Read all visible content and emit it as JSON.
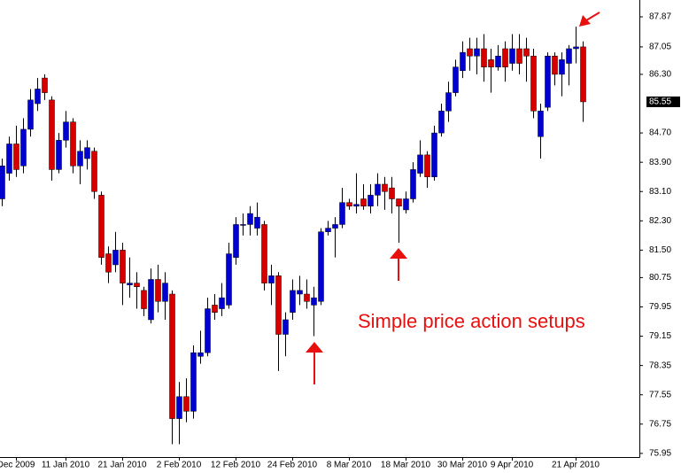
{
  "chart_data": {
    "type": "candlestick",
    "categories": [
      null,
      null,
      "Dec 2009",
      null,
      null,
      null,
      null,
      null,
      null,
      "11 Jan 2010",
      null,
      null,
      null,
      null,
      null,
      null,
      null,
      "21 Jan 2010",
      null,
      null,
      null,
      null,
      null,
      null,
      null,
      "2 Feb 2010",
      null,
      null,
      null,
      null,
      null,
      null,
      null,
      "12 Feb 2010",
      null,
      null,
      null,
      null,
      null,
      null,
      null,
      "24 Feb 2010",
      null,
      null,
      null,
      null,
      null,
      null,
      null,
      "8 Mar 2010",
      null,
      null,
      null,
      null,
      null,
      null,
      null,
      "18 Mar 2010",
      null,
      null,
      null,
      null,
      null,
      null,
      null,
      "30 Mar 2010",
      null,
      null,
      null,
      null,
      null,
      null,
      "9 Apr 2010",
      null,
      null,
      null,
      null,
      null,
      null,
      null,
      null,
      "21 Apr 2010",
      null
    ],
    "open": [
      82.9,
      83.6,
      84.4,
      83.8,
      84.8,
      85.5,
      86.2,
      85.6,
      83.7,
      84.5,
      85.0,
      83.8,
      84.0,
      84.2,
      83.0,
      81.4,
      81.1,
      81.5,
      80.55,
      80.6,
      80.4,
      79.6,
      80.7,
      80.1,
      80.3,
      76.9,
      77.5,
      77.1,
      78.6,
      78.7,
      80.0,
      79.9,
      80.0,
      81.3,
      82.2,
      82.2,
      82.1,
      82.2,
      80.6,
      80.8,
      79.2,
      79.8,
      80.3,
      80.3,
      80.0,
      80.1,
      82.0,
      82.1,
      82.2,
      82.8,
      82.7,
      82.9,
      82.7,
      83.0,
      83.3,
      83.2,
      82.9,
      82.6,
      82.9,
      83.6,
      84.1,
      83.5,
      84.7,
      85.3,
      85.8,
      86.4,
      87.0,
      86.8,
      87.0,
      86.7,
      86.5,
      87.0,
      86.6,
      87.0,
      87.0,
      86.8,
      84.6,
      85.4,
      86.8,
      86.3,
      86.6,
      87.0,
      87.05
    ],
    "high": [
      84.0,
      84.6,
      84.9,
      85.1,
      85.9,
      86.2,
      86.3,
      85.7,
      84.7,
      85.3,
      85.1,
      84.5,
      84.5,
      84.3,
      83.1,
      81.6,
      82.0,
      81.7,
      81.3,
      80.9,
      80.5,
      81.0,
      81.1,
      80.9,
      80.4,
      77.9,
      78.0,
      78.9,
      79.3,
      80.2,
      80.3,
      80.6,
      81.7,
      82.4,
      82.5,
      82.7,
      82.8,
      82.3,
      81.1,
      80.9,
      79.8,
      80.7,
      80.8,
      80.7,
      80.5,
      82.1,
      82.3,
      82.4,
      83.2,
      82.9,
      83.6,
      83.3,
      83.3,
      83.6,
      83.5,
      83.5,
      82.9,
      83.1,
      83.9,
      84.5,
      84.2,
      84.9,
      85.5,
      86.1,
      86.7,
      87.2,
      87.3,
      87.3,
      87.4,
      87.0,
      87.1,
      87.2,
      87.4,
      87.4,
      87.3,
      87.0,
      85.5,
      86.9,
      86.9,
      86.9,
      87.1,
      87.6,
      87.2
    ],
    "low": [
      82.7,
      83.4,
      83.5,
      83.6,
      84.6,
      85.3,
      85.6,
      83.4,
      83.6,
      84.3,
      83.6,
      83.3,
      83.7,
      82.9,
      81.1,
      80.6,
      80.9,
      80.0,
      80.2,
      79.9,
      79.7,
      79.5,
      79.8,
      79.6,
      76.2,
      76.2,
      76.8,
      76.9,
      78.4,
      78.6,
      79.6,
      79.7,
      79.9,
      81.1,
      81.9,
      81.9,
      81.9,
      80.4,
      80.0,
      78.2,
      78.6,
      79.6,
      80.0,
      79.9,
      79.15,
      80.0,
      81.9,
      81.3,
      82.1,
      82.6,
      82.5,
      82.6,
      82.5,
      82.7,
      82.6,
      82.5,
      81.7,
      82.5,
      82.8,
      83.5,
      83.2,
      83.4,
      84.6,
      85.0,
      85.7,
      86.2,
      86.4,
      86.3,
      86.1,
      85.8,
      86.4,
      86.1,
      86.4,
      86.3,
      86.1,
      85.1,
      84.0,
      85.3,
      86.0,
      85.7,
      86.0,
      86.6,
      85.0
    ],
    "close": [
      83.8,
      84.4,
      83.7,
      84.8,
      85.6,
      85.9,
      85.8,
      83.7,
      84.5,
      85.0,
      83.8,
      84.2,
      84.3,
      83.1,
      81.3,
      80.9,
      81.5,
      80.6,
      80.6,
      80.5,
      79.9,
      80.7,
      80.1,
      80.6,
      76.9,
      77.5,
      77.1,
      78.7,
      78.7,
      79.9,
      79.8,
      80.2,
      81.4,
      82.2,
      82.2,
      82.5,
      82.4,
      80.6,
      80.8,
      79.2,
      79.6,
      80.4,
      80.4,
      80.1,
      80.2,
      82.0,
      82.1,
      82.2,
      82.8,
      82.7,
      82.75,
      82.7,
      83.0,
      83.3,
      83.1,
      82.9,
      82.7,
      82.9,
      83.7,
      84.1,
      83.5,
      84.7,
      85.3,
      85.8,
      86.5,
      86.9,
      86.8,
      87.0,
      86.5,
      86.5,
      86.8,
      86.5,
      87.0,
      86.6,
      86.8,
      85.3,
      85.3,
      86.8,
      86.3,
      86.7,
      87.0,
      87.05,
      85.55
    ],
    "up_color": "#0000cc",
    "down_color": "#d40000",
    "wick_color": "#000000",
    "ylim": [
      75.85,
      88.33
    ],
    "yticks": [
      87.87,
      87.05,
      {
        "value": 86.3,
        "label": "86.30"
      },
      {
        "value": 84.7,
        "label": "84.70"
      },
      {
        "value": 83.9,
        "label": "83.90"
      },
      {
        "value": 83.1,
        "label": "83.10"
      },
      {
        "value": 82.3,
        "label": "82.30"
      },
      {
        "value": 81.5,
        "label": "81.50"
      },
      80.75,
      79.95,
      79.15,
      78.35,
      77.55,
      76.75,
      75.95
    ],
    "last_price": 85.55,
    "annotation": "Simple price action setups"
  }
}
